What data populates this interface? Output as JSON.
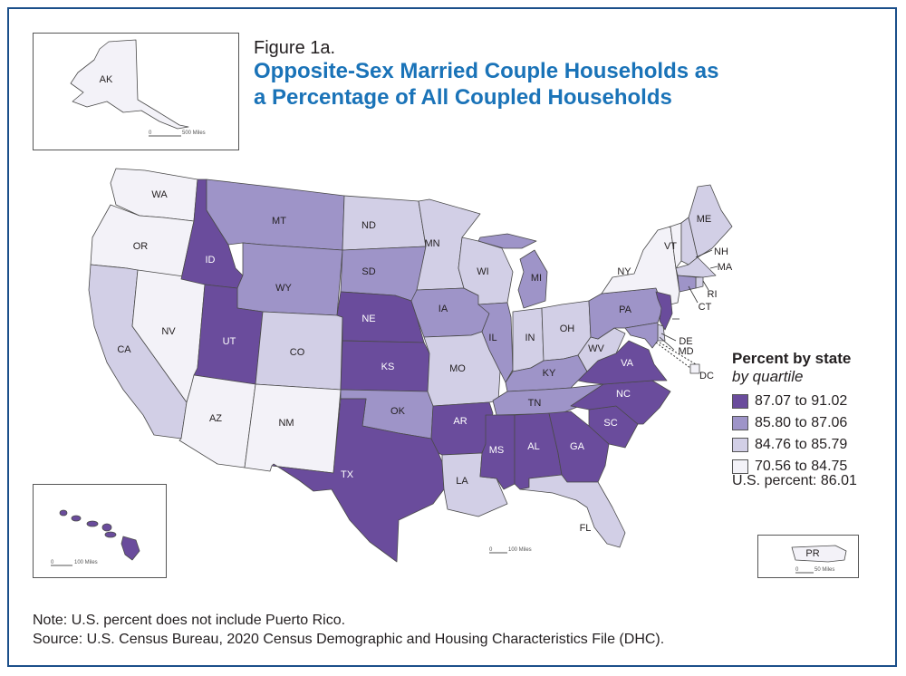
{
  "figure": {
    "label": "Figure 1a.",
    "title": "Opposite-Sex Married Couple Households as a Percentage of All Coupled Households"
  },
  "colors": {
    "q4": "#6a4c9c",
    "q3": "#9e94c8",
    "q2": "#d2cfe6",
    "q1": "#f3f2f8",
    "title": "#1a73b8",
    "frame": "#1b4f8a"
  },
  "legend": {
    "title": "Percent by state",
    "subtitle": "by quartile",
    "items": [
      {
        "label": "87.07 to 91.02",
        "color": "#6a4c9c"
      },
      {
        "label": "85.80 to 87.06",
        "color": "#9e94c8"
      },
      {
        "label": "84.76 to 85.79",
        "color": "#d2cfe6"
      },
      {
        "label": "70.56 to 84.75",
        "color": "#f3f2f8"
      }
    ]
  },
  "us_percent": "U.S. percent: 86.01",
  "scales": {
    "alaska": {
      "zero": "0",
      "distance": "500 Miles"
    },
    "hawaii": {
      "zero": "0",
      "distance": "100 Miles"
    },
    "mainland": {
      "zero": "0",
      "distance": "100 Miles"
    },
    "puerto_rico": {
      "zero": "0",
      "distance": "50 Miles"
    }
  },
  "states": [
    {
      "abbr": "WA",
      "quartile": "q1"
    },
    {
      "abbr": "OR",
      "quartile": "q1"
    },
    {
      "abbr": "CA",
      "quartile": "q2"
    },
    {
      "abbr": "NV",
      "quartile": "q1"
    },
    {
      "abbr": "ID",
      "quartile": "q4"
    },
    {
      "abbr": "MT",
      "quartile": "q3"
    },
    {
      "abbr": "WY",
      "quartile": "q3"
    },
    {
      "abbr": "UT",
      "quartile": "q4"
    },
    {
      "abbr": "AZ",
      "quartile": "q1"
    },
    {
      "abbr": "CO",
      "quartile": "q2"
    },
    {
      "abbr": "NM",
      "quartile": "q1"
    },
    {
      "abbr": "ND",
      "quartile": "q2"
    },
    {
      "abbr": "SD",
      "quartile": "q3"
    },
    {
      "abbr": "NE",
      "quartile": "q4"
    },
    {
      "abbr": "KS",
      "quartile": "q4"
    },
    {
      "abbr": "OK",
      "quartile": "q3"
    },
    {
      "abbr": "TX",
      "quartile": "q4"
    },
    {
      "abbr": "MN",
      "quartile": "q2"
    },
    {
      "abbr": "IA",
      "quartile": "q3"
    },
    {
      "abbr": "MO",
      "quartile": "q2"
    },
    {
      "abbr": "AR",
      "quartile": "q4"
    },
    {
      "abbr": "LA",
      "quartile": "q2"
    },
    {
      "abbr": "WI",
      "quartile": "q2"
    },
    {
      "abbr": "IL",
      "quartile": "q3"
    },
    {
      "abbr": "MI",
      "quartile": "q3"
    },
    {
      "abbr": "IN",
      "quartile": "q2"
    },
    {
      "abbr": "OH",
      "quartile": "q2"
    },
    {
      "abbr": "KY",
      "quartile": "q3"
    },
    {
      "abbr": "TN",
      "quartile": "q3"
    },
    {
      "abbr": "MS",
      "quartile": "q4"
    },
    {
      "abbr": "AL",
      "quartile": "q4"
    },
    {
      "abbr": "GA",
      "quartile": "q4"
    },
    {
      "abbr": "FL",
      "quartile": "q2"
    },
    {
      "abbr": "SC",
      "quartile": "q4"
    },
    {
      "abbr": "NC",
      "quartile": "q4"
    },
    {
      "abbr": "VA",
      "quartile": "q4"
    },
    {
      "abbr": "WV",
      "quartile": "q2"
    },
    {
      "abbr": "PA",
      "quartile": "q3"
    },
    {
      "abbr": "NY",
      "quartile": "q1"
    },
    {
      "abbr": "VT",
      "quartile": "q1"
    },
    {
      "abbr": "NH",
      "quartile": "q2"
    },
    {
      "abbr": "ME",
      "quartile": "q2"
    },
    {
      "abbr": "MA",
      "quartile": "q2"
    },
    {
      "abbr": "RI",
      "quartile": "q2"
    },
    {
      "abbr": "CT",
      "quartile": "q3"
    },
    {
      "abbr": "NJ",
      "quartile": "q4"
    },
    {
      "abbr": "DE",
      "quartile": "q2"
    },
    {
      "abbr": "MD",
      "quartile": "q3"
    },
    {
      "abbr": "DC",
      "quartile": "q1"
    },
    {
      "abbr": "AK",
      "quartile": "q1"
    },
    {
      "abbr": "HI",
      "quartile": "q4"
    },
    {
      "abbr": "PR",
      "quartile": "q1"
    }
  ],
  "notes": {
    "note": "Note: U.S. percent does not include Puerto Rico.",
    "source": "Source: U.S. Census Bureau, 2020 Census Demographic and Housing Characteristics File (DHC)."
  }
}
